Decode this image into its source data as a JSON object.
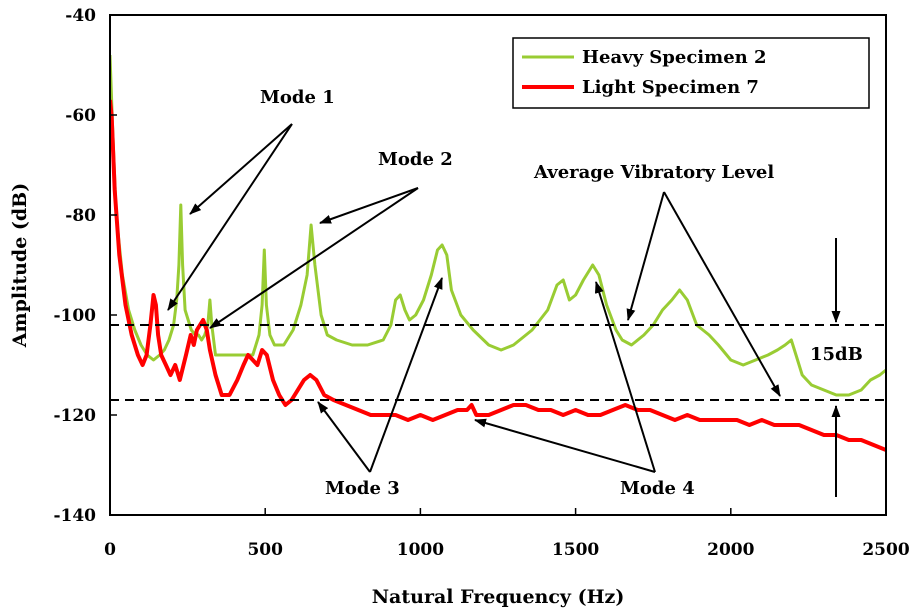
{
  "chart_data": {
    "type": "line",
    "xlabel": "Natural Frequency (Hz)",
    "ylabel": "Amplitude (dB)",
    "xlim": [
      0,
      2500
    ],
    "ylim": [
      -140,
      -40
    ],
    "xticks": [
      0,
      500,
      1000,
      1500,
      2000,
      2500
    ],
    "yticks": [
      -140,
      -120,
      -100,
      -80,
      -60,
      -40
    ],
    "grid": false,
    "legend_position": "top-right",
    "series": [
      {
        "name": "Heavy Specimen 2",
        "color": "#99cc33",
        "points": [
          [
            0,
            -48
          ],
          [
            8,
            -62
          ],
          [
            20,
            -80
          ],
          [
            40,
            -92
          ],
          [
            60,
            -99
          ],
          [
            80,
            -103
          ],
          [
            100,
            -106
          ],
          [
            120,
            -108
          ],
          [
            140,
            -109
          ],
          [
            160,
            -108
          ],
          [
            175,
            -107
          ],
          [
            190,
            -105
          ],
          [
            205,
            -102
          ],
          [
            215,
            -97
          ],
          [
            222,
            -90
          ],
          [
            228,
            -78
          ],
          [
            234,
            -90
          ],
          [
            242,
            -99
          ],
          [
            252,
            -101
          ],
          [
            262,
            -103
          ],
          [
            275,
            -104
          ],
          [
            285,
            -104
          ],
          [
            295,
            -105
          ],
          [
            305,
            -104
          ],
          [
            315,
            -102
          ],
          [
            322,
            -97
          ],
          [
            328,
            -102
          ],
          [
            340,
            -108
          ],
          [
            380,
            -108
          ],
          [
            420,
            -108
          ],
          [
            460,
            -108
          ],
          [
            480,
            -104
          ],
          [
            490,
            -98
          ],
          [
            497,
            -87
          ],
          [
            504,
            -98
          ],
          [
            515,
            -104
          ],
          [
            530,
            -106
          ],
          [
            560,
            -106
          ],
          [
            590,
            -103
          ],
          [
            615,
            -98
          ],
          [
            635,
            -92
          ],
          [
            648,
            -82
          ],
          [
            660,
            -90
          ],
          [
            680,
            -100
          ],
          [
            700,
            -104
          ],
          [
            730,
            -105
          ],
          [
            780,
            -106
          ],
          [
            830,
            -106
          ],
          [
            880,
            -105
          ],
          [
            905,
            -102
          ],
          [
            920,
            -97
          ],
          [
            935,
            -96
          ],
          [
            950,
            -99
          ],
          [
            965,
            -101
          ],
          [
            985,
            -100
          ],
          [
            1010,
            -97
          ],
          [
            1035,
            -92
          ],
          [
            1055,
            -87
          ],
          [
            1070,
            -86
          ],
          [
            1085,
            -88
          ],
          [
            1100,
            -95
          ],
          [
            1130,
            -100
          ],
          [
            1170,
            -103
          ],
          [
            1220,
            -106
          ],
          [
            1260,
            -107
          ],
          [
            1300,
            -106
          ],
          [
            1360,
            -103
          ],
          [
            1410,
            -99
          ],
          [
            1440,
            -94
          ],
          [
            1460,
            -93
          ],
          [
            1480,
            -97
          ],
          [
            1500,
            -96
          ],
          [
            1525,
            -93
          ],
          [
            1555,
            -90
          ],
          [
            1575,
            -92
          ],
          [
            1600,
            -98
          ],
          [
            1630,
            -103
          ],
          [
            1650,
            -105
          ],
          [
            1680,
            -106
          ],
          [
            1720,
            -104
          ],
          [
            1750,
            -102
          ],
          [
            1780,
            -99
          ],
          [
            1810,
            -97
          ],
          [
            1835,
            -95
          ],
          [
            1860,
            -97
          ],
          [
            1890,
            -102
          ],
          [
            1930,
            -104
          ],
          [
            1960,
            -106
          ],
          [
            2000,
            -109
          ],
          [
            2040,
            -110
          ],
          [
            2080,
            -109
          ],
          [
            2120,
            -108
          ],
          [
            2150,
            -107
          ],
          [
            2175,
            -106
          ],
          [
            2195,
            -105
          ],
          [
            2210,
            -108
          ],
          [
            2230,
            -112
          ],
          [
            2260,
            -114
          ],
          [
            2300,
            -115
          ],
          [
            2340,
            -116
          ],
          [
            2380,
            -116
          ],
          [
            2420,
            -115
          ],
          [
            2450,
            -113
          ],
          [
            2480,
            -112
          ],
          [
            2500,
            -111
          ]
        ]
      },
      {
        "name": "Light Specimen 7",
        "color": "#ff0000",
        "points": [
          [
            0,
            -57
          ],
          [
            5,
            -60
          ],
          [
            15,
            -75
          ],
          [
            30,
            -88
          ],
          [
            50,
            -98
          ],
          [
            70,
            -104
          ],
          [
            90,
            -108
          ],
          [
            105,
            -110
          ],
          [
            118,
            -108
          ],
          [
            130,
            -102
          ],
          [
            140,
            -96
          ],
          [
            148,
            -98
          ],
          [
            155,
            -104
          ],
          [
            165,
            -108
          ],
          [
            180,
            -110
          ],
          [
            195,
            -112
          ],
          [
            210,
            -110
          ],
          [
            225,
            -113
          ],
          [
            245,
            -108
          ],
          [
            260,
            -104
          ],
          [
            270,
            -106
          ],
          [
            280,
            -103
          ],
          [
            290,
            -102
          ],
          [
            300,
            -101
          ],
          [
            312,
            -103
          ],
          [
            322,
            -107
          ],
          [
            340,
            -112
          ],
          [
            360,
            -116
          ],
          [
            385,
            -116
          ],
          [
            410,
            -113
          ],
          [
            430,
            -110
          ],
          [
            445,
            -108
          ],
          [
            460,
            -109
          ],
          [
            475,
            -110
          ],
          [
            490,
            -107
          ],
          [
            505,
            -108
          ],
          [
            525,
            -113
          ],
          [
            545,
            -116
          ],
          [
            565,
            -118
          ],
          [
            585,
            -117
          ],
          [
            605,
            -115
          ],
          [
            625,
            -113
          ],
          [
            645,
            -112
          ],
          [
            665,
            -113
          ],
          [
            690,
            -116
          ],
          [
            720,
            -117
          ],
          [
            760,
            -118
          ],
          [
            800,
            -119
          ],
          [
            840,
            -120
          ],
          [
            880,
            -120
          ],
          [
            920,
            -120
          ],
          [
            960,
            -121
          ],
          [
            1000,
            -120
          ],
          [
            1040,
            -121
          ],
          [
            1080,
            -120
          ],
          [
            1120,
            -119
          ],
          [
            1150,
            -119
          ],
          [
            1165,
            -118
          ],
          [
            1180,
            -120
          ],
          [
            1220,
            -120
          ],
          [
            1260,
            -119
          ],
          [
            1300,
            -118
          ],
          [
            1340,
            -118
          ],
          [
            1380,
            -119
          ],
          [
            1420,
            -119
          ],
          [
            1460,
            -120
          ],
          [
            1500,
            -119
          ],
          [
            1540,
            -120
          ],
          [
            1580,
            -120
          ],
          [
            1620,
            -119
          ],
          [
            1660,
            -118
          ],
          [
            1700,
            -119
          ],
          [
            1740,
            -119
          ],
          [
            1780,
            -120
          ],
          [
            1820,
            -121
          ],
          [
            1860,
            -120
          ],
          [
            1900,
            -121
          ],
          [
            1940,
            -121
          ],
          [
            1980,
            -121
          ],
          [
            2020,
            -121
          ],
          [
            2060,
            -122
          ],
          [
            2100,
            -121
          ],
          [
            2140,
            -122
          ],
          [
            2180,
            -122
          ],
          [
            2220,
            -122
          ],
          [
            2260,
            -123
          ],
          [
            2300,
            -124
          ],
          [
            2340,
            -124
          ],
          [
            2380,
            -125
          ],
          [
            2420,
            -125
          ],
          [
            2460,
            -126
          ],
          [
            2500,
            -127
          ]
        ]
      }
    ],
    "reference_lines": [
      {
        "y": -102,
        "style": "dashed"
      },
      {
        "y": -117,
        "style": "dashed"
      }
    ],
    "annotations": {
      "mode1": "Mode 1",
      "mode2": "Mode 2",
      "mode3": "Mode 3",
      "mode4": "Mode 4",
      "average": "Average Vibratory Level",
      "difference": "15dB"
    }
  }
}
